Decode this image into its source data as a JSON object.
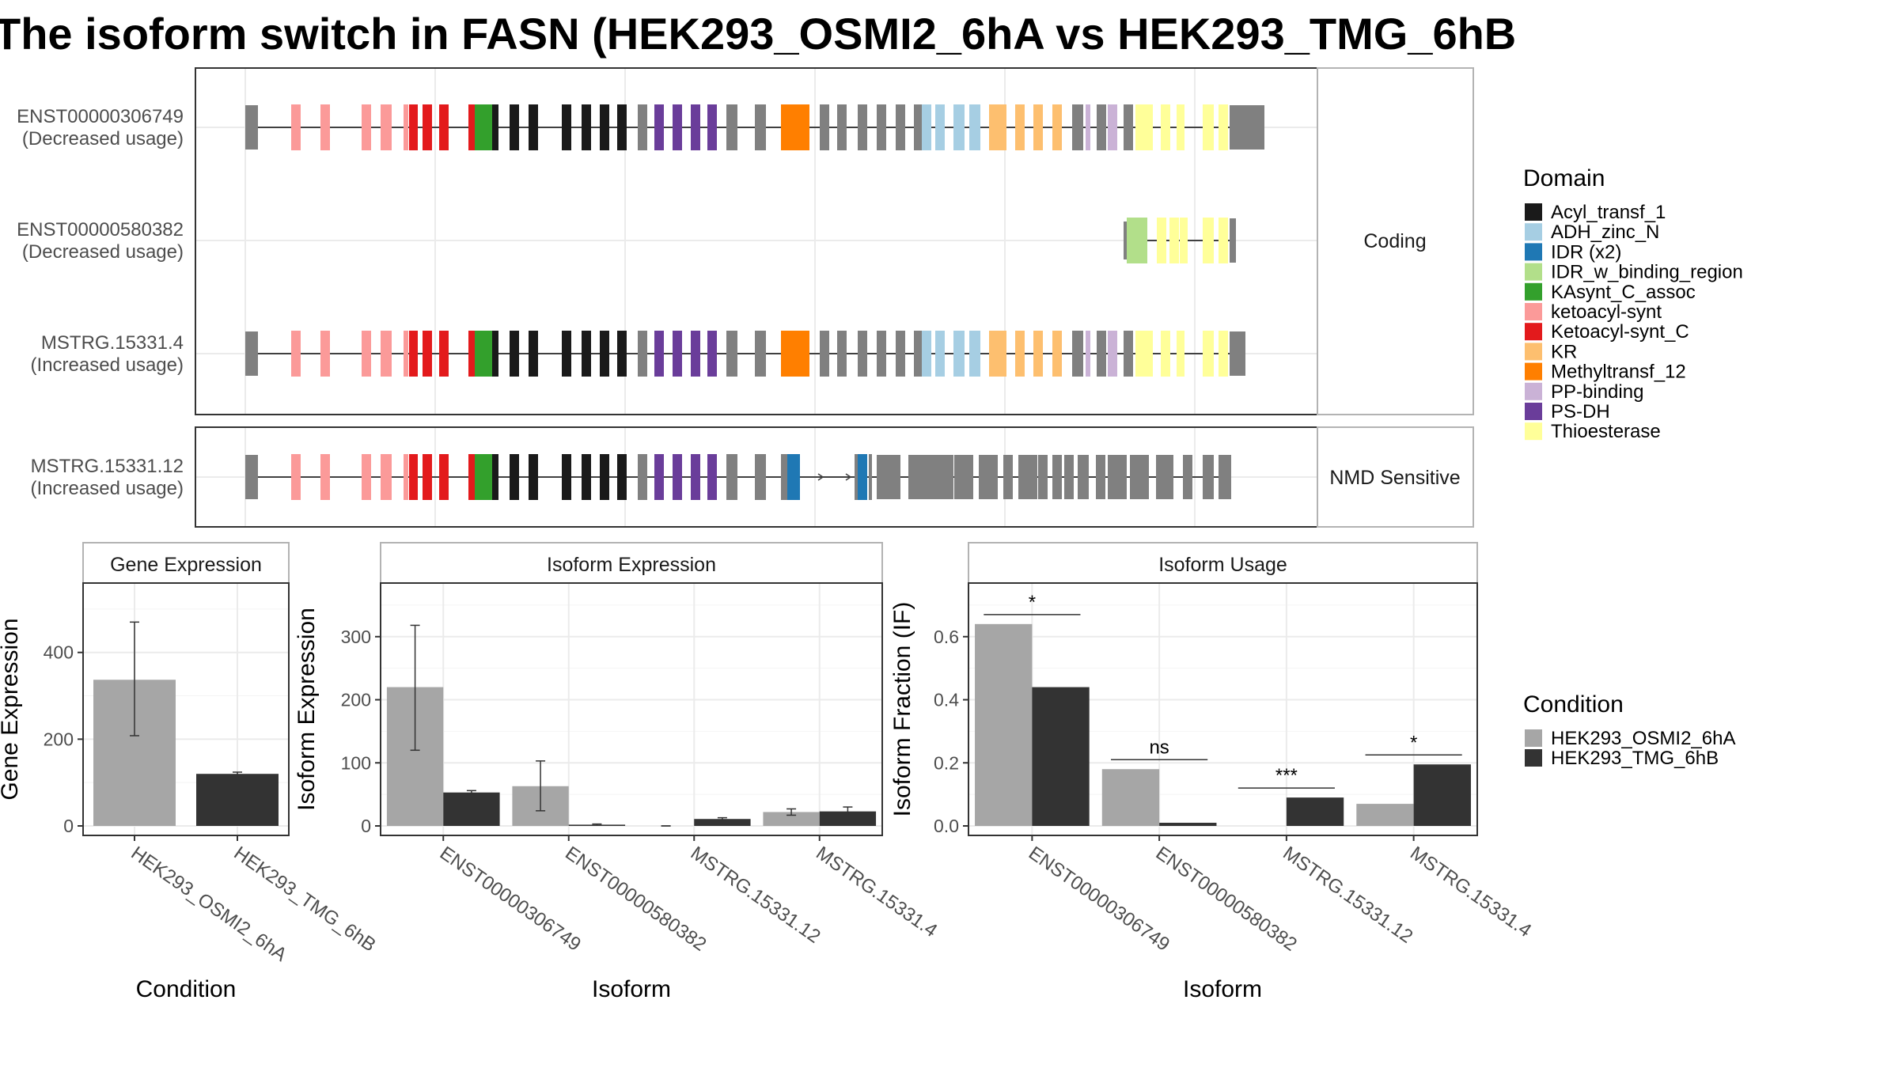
{
  "title": "The isoform switch in FASN (HEK293_OSMI2_6hA vs HEK293_TMG_6hB",
  "structure": {
    "panels": [
      {
        "name": "Coding",
        "isoforms": [
          {
            "id": "ENST00000306749",
            "usage": "(Decreased usage)"
          },
          {
            "id": "ENST00000580382",
            "usage": "(Decreased usage)"
          },
          {
            "id": "MSTRG.15331.4",
            "usage": "(Increased usage)"
          }
        ]
      },
      {
        "name": "NMD Sensitive",
        "isoforms": [
          {
            "id": "MSTRG.15331.12",
            "usage": "(Increased usage)"
          }
        ]
      }
    ]
  },
  "domain_legend": {
    "title": "Domain",
    "items": [
      {
        "label": "Acyl_transf_1",
        "color": "#1a1a1a"
      },
      {
        "label": "ADH_zinc_N",
        "color": "#a6cee3"
      },
      {
        "label": "IDR (x2)",
        "color": "#1f78b4"
      },
      {
        "label": "IDR_w_binding_region",
        "color": "#b2df8a"
      },
      {
        "label": "KAsynt_C_assoc",
        "color": "#33a02c"
      },
      {
        "label": "ketoacyl-synt",
        "color": "#fb9a99"
      },
      {
        "label": "Ketoacyl-synt_C",
        "color": "#e31a1c"
      },
      {
        "label": "KR",
        "color": "#fdbf6f"
      },
      {
        "label": "Methyltransf_12",
        "color": "#ff7f00"
      },
      {
        "label": "PP-binding",
        "color": "#cab2d6"
      },
      {
        "label": "PS-DH",
        "color": "#6a3d9a"
      },
      {
        "label": "Thioesterase",
        "color": "#ffff99"
      }
    ]
  },
  "condition_legend": {
    "title": "Condition",
    "items": [
      {
        "label": "HEK293_OSMI2_6hA",
        "color": "#a6a6a6"
      },
      {
        "label": "HEK293_TMG_6hB",
        "color": "#333333"
      }
    ]
  },
  "chart_data": [
    {
      "type": "bar",
      "title": "Gene Expression",
      "xlabel": "Condition",
      "ylabel": "Gene Expression",
      "ylim": [
        0,
        560
      ],
      "yticks": [
        0,
        200,
        400
      ],
      "categories": [
        "HEK293_OSMI2_6hA",
        "HEK293_TMG_6hB"
      ],
      "values": [
        337,
        120
      ],
      "errors": [
        [
          208,
          470
        ],
        [
          116,
          124
        ]
      ],
      "colors": [
        "#a6a6a6",
        "#333333"
      ]
    },
    {
      "type": "bar",
      "title": "Isoform Expression",
      "xlabel": "Isoform",
      "ylabel": "Isoform Expression",
      "ylim": [
        0,
        385
      ],
      "yticks": [
        0,
        100,
        200,
        300
      ],
      "categories": [
        "ENST00000306749",
        "ENST00000580382",
        "MSTRG.15331.12",
        "MSTRG.15331.4"
      ],
      "series": [
        {
          "name": "HEK293_OSMI2_6hA",
          "values": [
            220,
            63,
            0,
            22
          ],
          "errors": [
            [
              120,
              318
            ],
            [
              24,
              103
            ],
            [
              0,
              0
            ],
            [
              17,
              27
            ]
          ]
        },
        {
          "name": "HEK293_TMG_6hB",
          "values": [
            53,
            2,
            11,
            23
          ],
          "errors": [
            [
              50,
              56
            ],
            [
              1,
              3
            ],
            [
              9,
              13
            ],
            [
              16,
              30
            ]
          ]
        }
      ]
    },
    {
      "type": "bar",
      "title": "Isoform Usage",
      "xlabel": "Isoform",
      "ylabel": "Isoform Fraction (IF)",
      "ylim": [
        0,
        0.77
      ],
      "yticks": [
        0.0,
        0.2,
        0.4,
        0.6
      ],
      "ytick_labels": [
        "0.0",
        "0.2",
        "0.4",
        "0.6"
      ],
      "categories": [
        "ENST00000306749",
        "ENST00000580382",
        "MSTRG.15331.12",
        "MSTRG.15331.4"
      ],
      "series": [
        {
          "name": "HEK293_OSMI2_6hA",
          "values": [
            0.64,
            0.18,
            0.0,
            0.07
          ]
        },
        {
          "name": "HEK293_TMG_6hB",
          "values": [
            0.44,
            0.01,
            0.09,
            0.195
          ]
        }
      ],
      "significance": [
        {
          "label": "*",
          "y": 0.67
        },
        {
          "label": "ns",
          "y": 0.21
        },
        {
          "label": "***",
          "y": 0.12
        },
        {
          "label": "*",
          "y": 0.225
        }
      ]
    }
  ]
}
